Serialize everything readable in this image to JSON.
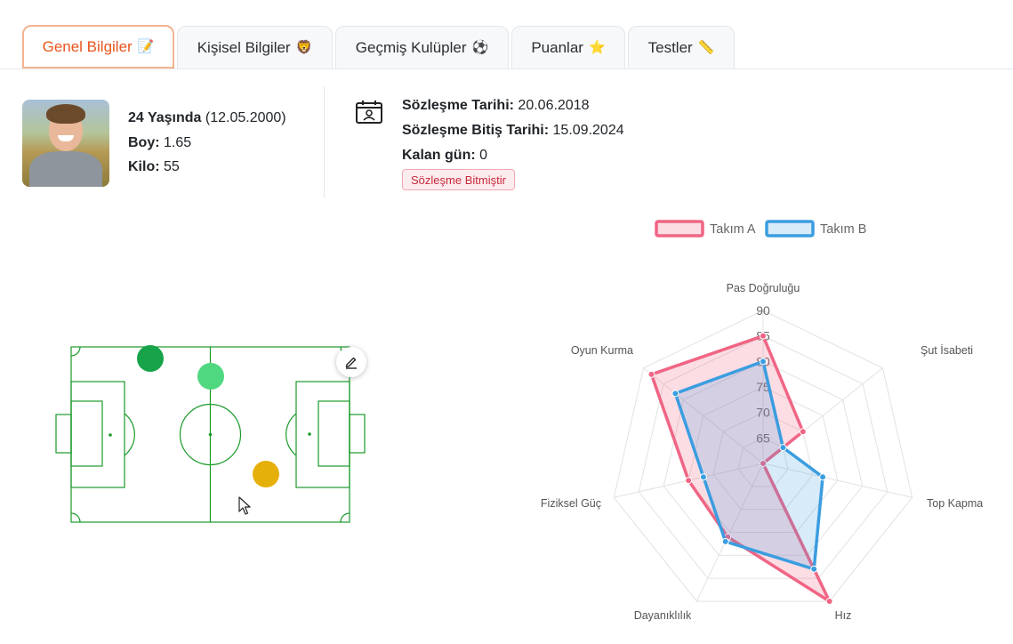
{
  "tabs": [
    {
      "label": "Genel Bilgiler",
      "icon": "📝",
      "active": true
    },
    {
      "label": "Kişisel Bilgiler",
      "icon": "🦁",
      "active": false
    },
    {
      "label": "Geçmiş Kulüpler",
      "icon": "⚽",
      "active": false
    },
    {
      "label": "Puanlar",
      "icon": "⭐",
      "active": false
    },
    {
      "label": "Testler",
      "icon": "📏",
      "active": false
    }
  ],
  "profile": {
    "age_label": "24 Yaşında",
    "birth_date": "(12.05.2000)",
    "height_label": "Boy:",
    "height_value": "1.65",
    "weight_label": "Kilo:",
    "weight_value": "55"
  },
  "contract": {
    "start_label": "Sözleşme Tarihi:",
    "start_value": "20.06.2018",
    "end_label": "Sözleşme Bitiş Tarihi:",
    "end_value": "15.09.2024",
    "remaining_label": "Kalan gün:",
    "remaining_value": "0",
    "status_badge": "Sözleşme Bitmiştir",
    "status_color": "#c8283a"
  },
  "pitch": {
    "line_color": "#1a9a2a",
    "position_markers": [
      {
        "name": "marker-dark-green",
        "color": "#17a34a"
      },
      {
        "name": "marker-light-green",
        "color": "#4fd87f"
      },
      {
        "name": "marker-yellow",
        "color": "#e6b00a"
      }
    ],
    "edit_icon": "pencil-icon"
  },
  "chart_data": {
    "type": "radar",
    "axes": [
      "Pas Doğruluğu",
      "Şut İsabeti",
      "Top Kapma",
      "Hız",
      "Dayanıklılık",
      "Fiziksel Güç",
      "Oyun Kurma"
    ],
    "tick_labels": [
      "65",
      "70",
      "75",
      "80",
      "85",
      "90"
    ],
    "range": [
      60,
      90
    ],
    "legend_position": "top",
    "series": [
      {
        "name": "Takım A",
        "color": "#f06584",
        "values": [
          85,
          70,
          60,
          90,
          76,
          75,
          88
        ]
      },
      {
        "name": "Takım B",
        "color": "#3b9de0",
        "values": [
          80,
          65,
          72,
          83,
          77,
          72,
          82
        ]
      }
    ]
  }
}
